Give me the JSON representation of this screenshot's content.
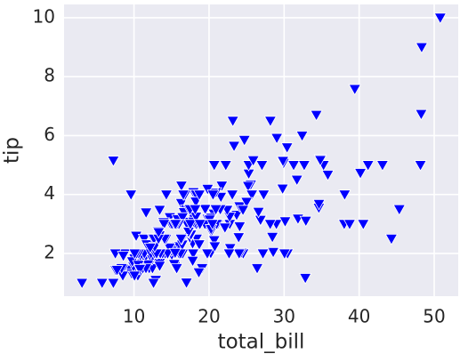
{
  "chart_data": {
    "type": "scatter",
    "xlabel": "total_bill",
    "ylabel": "tip",
    "color": "#0000ff",
    "marker": "triangle-down",
    "grid": true,
    "xlim": [
      0.68,
      53.2
    ],
    "ylim": [
      0.55,
      10.45
    ],
    "xticks": [
      10,
      20,
      30,
      40,
      50
    ],
    "yticks": [
      2,
      4,
      6,
      8,
      10
    ],
    "x": [
      16.99,
      10.34,
      21.01,
      23.68,
      24.59,
      25.29,
      8.77,
      26.88,
      15.04,
      14.78,
      10.27,
      35.26,
      15.42,
      18.43,
      14.83,
      21.58,
      10.33,
      16.29,
      16.97,
      20.65,
      17.92,
      20.29,
      15.77,
      39.42,
      19.82,
      17.81,
      13.37,
      12.69,
      21.7,
      19.65,
      9.55,
      18.35,
      15.06,
      20.69,
      17.78,
      24.06,
      16.31,
      16.93,
      18.69,
      31.27,
      16.04,
      17.46,
      13.94,
      9.68,
      30.4,
      18.29,
      22.23,
      32.4,
      28.55,
      18.04,
      12.54,
      10.29,
      34.81,
      9.94,
      25.56,
      19.49,
      38.01,
      26.41,
      11.24,
      48.27,
      20.29,
      13.81,
      11.02,
      18.29,
      17.59,
      20.08,
      16.45,
      3.07,
      20.23,
      15.01,
      12.02,
      17.07,
      26.86,
      25.28,
      14.73,
      10.51,
      17.92,
      27.2,
      22.76,
      17.29,
      19.44,
      16.66,
      10.07,
      32.68,
      15.98,
      34.83,
      13.03,
      18.28,
      24.71,
      21.16,
      28.97,
      22.49,
      5.75,
      16.32,
      22.75,
      40.17,
      27.28,
      12.03,
      21.01,
      12.46,
      11.35,
      15.38,
      44.3,
      22.42,
      20.92,
      15.36,
      20.49,
      25.21,
      18.24,
      14.31,
      14,
      7.25,
      38.07,
      23.95,
      25.71,
      17.31,
      29.93,
      10.65,
      12.43,
      24.08,
      11.69,
      13.42,
      14.26,
      15.95,
      12.48,
      29.8,
      8.52,
      14.52,
      11.38,
      22.82,
      19.08,
      20.27,
      11.17,
      12.26,
      18.26,
      8.51,
      10.33,
      14.15,
      16,
      13.16,
      17.47,
      34.3,
      41.19,
      27.05,
      16.43,
      8.35,
      18.64,
      11.87,
      9.78,
      7.51,
      14.07,
      13.13,
      17.26,
      24.55,
      19.77,
      29.85,
      48.17,
      25,
      13.39,
      16.49,
      21.5,
      12.66,
      16.21,
      13.81,
      17.51,
      24.52,
      20.76,
      31.71,
      10.59,
      10.63,
      50.81,
      15.81,
      7.25,
      31.85,
      16.82,
      32.9,
      17.89,
      14.48,
      9.6,
      34.63,
      34.65,
      23.33,
      45.35,
      23.17,
      40.55,
      20.69,
      20.9,
      30.46,
      18.15,
      23.1,
      15.69,
      19.81,
      28.44,
      15.48,
      16.58,
      7.56,
      10.34,
      43.11,
      13,
      13.51,
      18.71,
      12.74,
      13,
      16.4,
      20.53,
      16.47,
      26.59,
      38.73,
      24.27,
      12.76,
      30.06,
      25.89,
      48.33,
      13.27,
      28.17,
      12.9,
      28.15,
      11.59,
      7.74,
      30.14,
      12.16,
      13.42,
      8.58,
      15.98,
      13.42,
      16.27,
      10.09,
      20.45,
      13.28,
      22.12,
      24.01,
      15.69,
      11.61,
      10.77,
      15.53,
      10.07,
      12.6,
      32.83,
      35.83,
      29.03,
      27.18,
      22.67,
      17.82,
      18.78
    ],
    "values": [
      1.01,
      1.66,
      3.5,
      3.31,
      3.61,
      4.71,
      2,
      3.12,
      1.96,
      3.23,
      1.71,
      5,
      1.57,
      3,
      3.02,
      3.92,
      1.67,
      3.71,
      3.5,
      3.35,
      4.08,
      2.75,
      2.23,
      7.58,
      3.18,
      2.34,
      2,
      2,
      4.3,
      3,
      1.45,
      2.5,
      3,
      2.45,
      3.27,
      3.6,
      2,
      3.07,
      2.31,
      5,
      2.24,
      2.54,
      3.06,
      1.32,
      5.6,
      3,
      5,
      6,
      2.05,
      3,
      2.5,
      2.6,
      5.2,
      1.56,
      4.34,
      3.51,
      3,
      1.5,
      1.76,
      6.73,
      3.21,
      2,
      1.98,
      3.76,
      2.64,
      3.15,
      2.47,
      1,
      2.01,
      2.09,
      1.97,
      3,
      3.14,
      5,
      2.2,
      1.25,
      3.08,
      4,
      3,
      2.71,
      3,
      3.4,
      1.83,
      5,
      2.03,
      5.17,
      2,
      4,
      5.85,
      3,
      3,
      3.5,
      1,
      4.3,
      3.25,
      4.73,
      4,
      1.5,
      3,
      1.5,
      2.5,
      3,
      2.5,
      3.48,
      4.08,
      1.64,
      4.06,
      4.29,
      3.76,
      4,
      3,
      1,
      4,
      2.55,
      4,
      3.5,
      5.07,
      1.5,
      1.8,
      2.92,
      2.31,
      1.68,
      2.5,
      2,
      2.52,
      4.2,
      1.48,
      2,
      2,
      2.18,
      1.5,
      2.83,
      1.5,
      2,
      3.25,
      1.25,
      2,
      2,
      2,
      2.75,
      3.5,
      6.7,
      5,
      5,
      2.3,
      1.5,
      1.36,
      1.63,
      1.73,
      2,
      2.5,
      2,
      2.74,
      2,
      2,
      5.14,
      5,
      3.75,
      2.61,
      2,
      3.5,
      2.5,
      2,
      2,
      3,
      3.48,
      2.24,
      4.5,
      1.61,
      2,
      10,
      3.16,
      5.15,
      3.18,
      4,
      3.11,
      2,
      2,
      4,
      3.55,
      3.68,
      5.65,
      3.5,
      6.5,
      3,
      5,
      3.5,
      2,
      3.5,
      4,
      1.5,
      4.19,
      2.56,
      2.02,
      4,
      1.44,
      2,
      5,
      2,
      2,
      4,
      2.01,
      2,
      2.5,
      4,
      3.23,
      3.41,
      3,
      2.03,
      2.23,
      2,
      5.16,
      9,
      2.5,
      6.5,
      1.1,
      3,
      1.5,
      1.44,
      3.09,
      2.2,
      3.48,
      1.92,
      3,
      1.58,
      2.5,
      2,
      3,
      2.72,
      2.88,
      2,
      3,
      3.39,
      1.47,
      3,
      1.25,
      1,
      1.17,
      4.67,
      5.92,
      2,
      2,
      1.75,
      3
    ]
  }
}
